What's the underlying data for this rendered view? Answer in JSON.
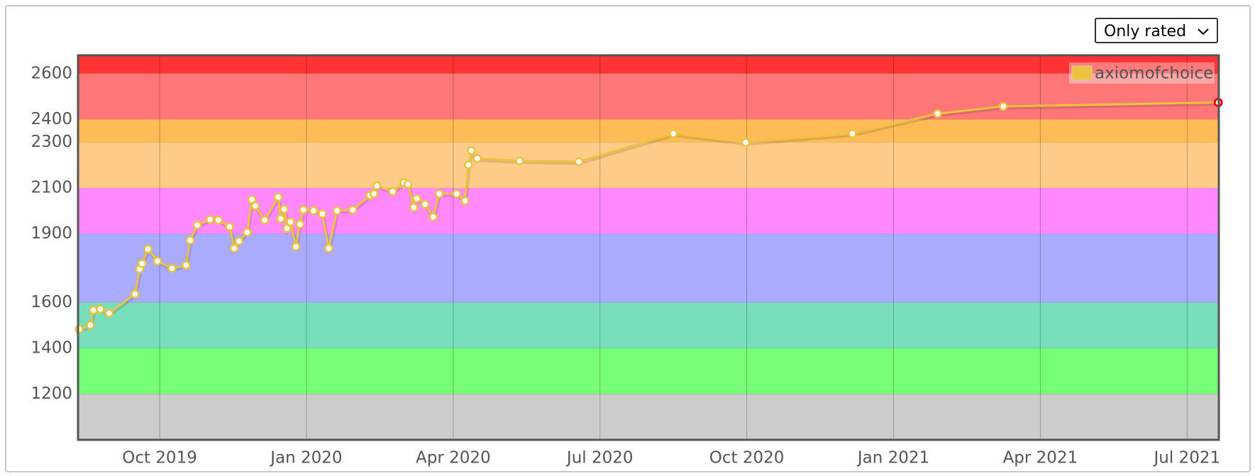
{
  "filter": {
    "selected": "Only rated"
  },
  "chart_data": {
    "type": "line",
    "xlim": [
      2019.611,
      2021.554
    ],
    "xticks": [
      {
        "value": 2019.75,
        "label": "Oct 2019"
      },
      {
        "value": 2020.0,
        "label": "Jan 2020"
      },
      {
        "value": 2020.25,
        "label": "Apr 2020"
      },
      {
        "value": 2020.5,
        "label": "Jul 2020"
      },
      {
        "value": 2020.75,
        "label": "Oct 2020"
      },
      {
        "value": 2021.0,
        "label": "Jan 2021"
      },
      {
        "value": 2021.25,
        "label": "Apr 2021"
      },
      {
        "value": 2021.5,
        "label": "Jul 2021"
      }
    ],
    "ylim": [
      1000,
      2680
    ],
    "yticks": [
      1200,
      1400,
      1600,
      1900,
      2100,
      2300,
      2400,
      2600
    ],
    "bands": [
      {
        "from": 1000,
        "to": 1200,
        "color": "#cccccc"
      },
      {
        "from": 1200,
        "to": 1400,
        "color": "#77ff77"
      },
      {
        "from": 1400,
        "to": 1600,
        "color": "#77ddbb"
      },
      {
        "from": 1600,
        "to": 1900,
        "color": "#aaaaff"
      },
      {
        "from": 1900,
        "to": 2100,
        "color": "#ff88ff"
      },
      {
        "from": 2100,
        "to": 2300,
        "color": "#ffcc88"
      },
      {
        "from": 2300,
        "to": 2400,
        "color": "#ffbb55"
      },
      {
        "from": 2400,
        "to": 2600,
        "color": "#ff7777"
      },
      {
        "from": 2600,
        "to": 2680,
        "color": "#ff3333"
      }
    ],
    "grid": true,
    "legend": "top-right",
    "series": [
      {
        "name": "axiomofchoice",
        "color": "#edc240",
        "x": [
          2019.613,
          2019.632,
          2019.637,
          2019.649,
          2019.664,
          2019.708,
          2019.716,
          2019.72,
          2019.73,
          2019.746,
          2019.771,
          2019.795,
          2019.802,
          2019.814,
          2019.836,
          2019.85,
          2019.869,
          2019.877,
          2019.885,
          2019.899,
          2019.907,
          2019.913,
          2019.929,
          2019.952,
          2019.956,
          2019.962,
          2019.967,
          2019.973,
          2019.982,
          2019.989,
          2019.995,
          2020.012,
          2020.027,
          2020.038,
          2020.052,
          2020.079,
          2020.108,
          2020.115,
          2020.12,
          2020.147,
          2020.166,
          2020.173,
          2020.183,
          2020.188,
          2020.202,
          2020.216,
          2020.226,
          2020.256,
          2020.27,
          2020.276,
          2020.281,
          2020.291,
          2020.363,
          2020.464,
          2020.625,
          2020.748,
          2020.93,
          2021.075,
          2021.187,
          2021.553
        ],
        "values": [
          1483,
          1501,
          1567,
          1571,
          1553,
          1637,
          1746,
          1770,
          1833,
          1781,
          1749,
          1763,
          1872,
          1938,
          1963,
          1960,
          1931,
          1837,
          1868,
          1907,
          2050,
          2022,
          1960,
          2061,
          1966,
          2008,
          1924,
          1952,
          1844,
          1942,
          2005,
          2001,
          1987,
          1837,
          2001,
          2005,
          2068,
          2075,
          2110,
          2085,
          2124,
          2117,
          2015,
          2054,
          2029,
          1974,
          2075,
          2075,
          2044,
          2201,
          2264,
          2229,
          2219,
          2215,
          2338,
          2299,
          2338,
          2425,
          2457,
          2474
        ]
      }
    ]
  }
}
